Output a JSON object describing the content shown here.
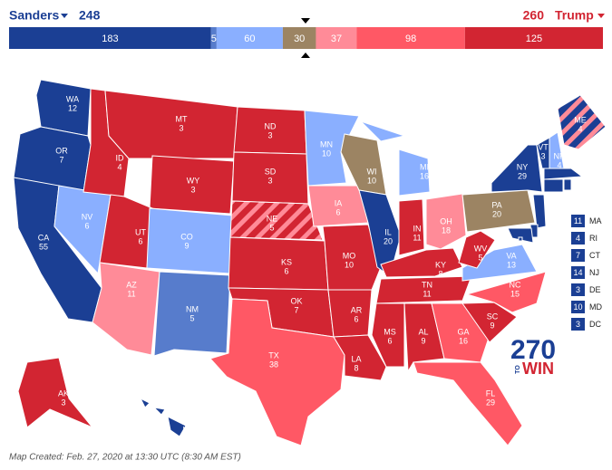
{
  "header": {
    "left_name": "Sanders",
    "left_total": "248",
    "right_total": "260",
    "right_name": "Trump",
    "left_color": "#1b3f94",
    "right_color": "#d22532"
  },
  "bar": [
    {
      "value": 183,
      "color": "#1b3f94"
    },
    {
      "value": 5,
      "color": "#577ccc"
    },
    {
      "value": 60,
      "color": "#8aafff"
    },
    {
      "value": 30,
      "color": "#9c8463"
    },
    {
      "value": 37,
      "color": "#ff8b98"
    },
    {
      "value": 98,
      "color": "#ff5865"
    },
    {
      "value": 125,
      "color": "#d22532"
    }
  ],
  "states": [
    {
      "abbr": "WA",
      "votes": "12",
      "color": "#1b3f94"
    },
    {
      "abbr": "OR",
      "votes": "7",
      "color": "#1b3f94"
    },
    {
      "abbr": "CA",
      "votes": "55",
      "color": "#1b3f94"
    },
    {
      "abbr": "NV",
      "votes": "6",
      "color": "#8aafff"
    },
    {
      "abbr": "ID",
      "votes": "4",
      "color": "#d22532"
    },
    {
      "abbr": "MT",
      "votes": "3",
      "color": "#d22532"
    },
    {
      "abbr": "WY",
      "votes": "3",
      "color": "#d22532"
    },
    {
      "abbr": "UT",
      "votes": "6",
      "color": "#d22532"
    },
    {
      "abbr": "AZ",
      "votes": "11",
      "color": "#ff8b98"
    },
    {
      "abbr": "CO",
      "votes": "9",
      "color": "#8aafff"
    },
    {
      "abbr": "NM",
      "votes": "5",
      "color": "#577ccc"
    },
    {
      "abbr": "ND",
      "votes": "3",
      "color": "#d22532"
    },
    {
      "abbr": "SD",
      "votes": "3",
      "color": "#d22532"
    },
    {
      "abbr": "NE",
      "votes": "5",
      "color": "#d22532",
      "stripe_color": "#ff8b98"
    },
    {
      "abbr": "KS",
      "votes": "6",
      "color": "#d22532"
    },
    {
      "abbr": "OK",
      "votes": "7",
      "color": "#d22532"
    },
    {
      "abbr": "TX",
      "votes": "38",
      "color": "#ff5865"
    },
    {
      "abbr": "MN",
      "votes": "10",
      "color": "#8aafff"
    },
    {
      "abbr": "IA",
      "votes": "6",
      "color": "#ff8b98"
    },
    {
      "abbr": "MO",
      "votes": "10",
      "color": "#d22532"
    },
    {
      "abbr": "AR",
      "votes": "6",
      "color": "#d22532"
    },
    {
      "abbr": "LA",
      "votes": "8",
      "color": "#d22532"
    },
    {
      "abbr": "WI",
      "votes": "10",
      "color": "#9c8463"
    },
    {
      "abbr": "IL",
      "votes": "20",
      "color": "#1b3f94"
    },
    {
      "abbr": "MI",
      "votes": "16",
      "color": "#8aafff"
    },
    {
      "abbr": "IN",
      "votes": "11",
      "color": "#d22532"
    },
    {
      "abbr": "OH",
      "votes": "18",
      "color": "#ff8b98"
    },
    {
      "abbr": "KY",
      "votes": "8",
      "color": "#d22532"
    },
    {
      "abbr": "TN",
      "votes": "11",
      "color": "#d22532"
    },
    {
      "abbr": "MS",
      "votes": "6",
      "color": "#d22532"
    },
    {
      "abbr": "AL",
      "votes": "9",
      "color": "#d22532"
    },
    {
      "abbr": "GA",
      "votes": "16",
      "color": "#ff5865"
    },
    {
      "abbr": "FL",
      "votes": "29",
      "color": "#ff5865"
    },
    {
      "abbr": "SC",
      "votes": "9",
      "color": "#d22532"
    },
    {
      "abbr": "NC",
      "votes": "15",
      "color": "#ff5865"
    },
    {
      "abbr": "VA",
      "votes": "13",
      "color": "#8aafff"
    },
    {
      "abbr": "WV",
      "votes": "5",
      "color": "#d22532"
    },
    {
      "abbr": "PA",
      "votes": "20",
      "color": "#9c8463"
    },
    {
      "abbr": "NY",
      "votes": "29",
      "color": "#1b3f94"
    },
    {
      "abbr": "VT",
      "votes": "3",
      "color": "#1b3f94"
    },
    {
      "abbr": "NH",
      "votes": "4",
      "color": "#8aafff"
    },
    {
      "abbr": "ME",
      "votes": "4",
      "color": "#1b3f94",
      "stripe_color": "#ff8b98"
    },
    {
      "abbr": "AK",
      "votes": "3",
      "color": "#d22532"
    },
    {
      "abbr": "HI",
      "votes": "4",
      "color": "#1b3f94"
    },
    {
      "abbr": "MA",
      "votes": "11",
      "color": "#1b3f94"
    },
    {
      "abbr": "RI",
      "votes": "4",
      "color": "#1b3f94"
    },
    {
      "abbr": "CT",
      "votes": "7",
      "color": "#1b3f94"
    },
    {
      "abbr": "NJ",
      "votes": "14",
      "color": "#1b3f94"
    },
    {
      "abbr": "DE",
      "votes": "3",
      "color": "#1b3f94"
    },
    {
      "abbr": "MD",
      "votes": "10",
      "color": "#1b3f94"
    },
    {
      "abbr": "DC",
      "votes": "3",
      "color": "#1b3f94"
    }
  ],
  "logo": {
    "number": "270",
    "to": "TO",
    "win": "WIN"
  },
  "footer": "Map Created: Feb. 27, 2020 at 13:30 UTC (8:30 AM EST)"
}
